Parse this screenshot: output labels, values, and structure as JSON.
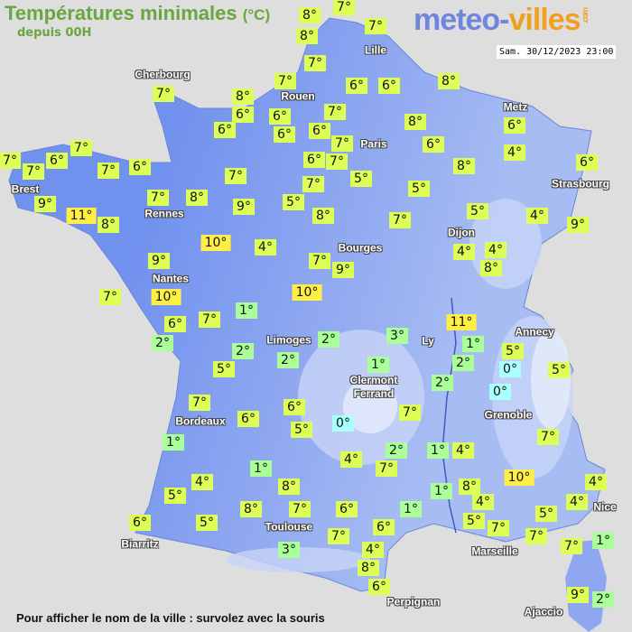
{
  "header": {
    "title": "Températures minimales",
    "unit": "(°C)",
    "subtitle": "depuis 00H",
    "logo_text": "meteo-villes.com",
    "logo_part1": "meteo-",
    "logo_part2": "villes",
    "logo_suffix": ".com",
    "datetime": "Sam. 30/12/2023 23:00"
  },
  "footer": {
    "hint": "Pour afficher le nom de la ville : survolez avec la souris"
  },
  "colors": {
    "warm": "#ffee44",
    "mild": "#ddff55",
    "cool": "#aaff99",
    "freezing": "#aaffff",
    "land_west": "#7091ee",
    "land_east": "#a7bcf3",
    "sea": "#dedede",
    "title": "#6aa640"
  },
  "cities": [
    "Cherbourg",
    "Lille",
    "Rouen",
    "Paris",
    "Metz",
    "Strasbourg",
    "Brest",
    "Rennes",
    "Dijon",
    "Bourges",
    "Nantes",
    "Limoges",
    "Ly",
    "Annecy",
    "Clermont\nFerrand",
    "Grenoble",
    "Bordeaux",
    "Toulouse",
    "Nice",
    "Biarritz",
    "Marseille",
    "Perpignan",
    "Ajaccio"
  ],
  "temperatures": [
    8,
    7,
    8,
    7,
    7,
    7,
    7,
    8,
    6,
    6,
    6,
    8,
    6,
    6,
    6,
    7,
    6,
    8,
    6,
    7,
    7,
    7,
    6,
    7,
    6,
    7,
    6,
    4,
    6,
    7,
    5,
    7,
    7,
    8,
    6,
    9,
    7,
    8,
    9,
    5,
    5,
    8,
    11,
    8,
    7,
    5,
    4,
    9,
    10,
    4,
    4,
    4,
    8,
    9,
    7,
    9,
    10,
    7,
    10,
    6,
    7,
    1,
    11,
    2,
    2,
    3,
    1,
    5,
    2,
    2,
    0,
    5,
    5,
    2,
    1,
    2,
    0,
    7,
    7,
    6,
    6,
    5,
    0,
    7,
    1,
    2,
    1,
    4,
    4,
    7,
    1,
    10,
    4,
    8,
    5,
    1,
    8,
    4,
    4,
    8,
    7,
    6,
    1,
    4,
    5,
    5,
    7,
    6,
    5,
    6,
    7,
    7,
    1,
    3,
    7,
    4,
    8,
    6,
    9,
    2
  ],
  "degree_suffix": "°"
}
